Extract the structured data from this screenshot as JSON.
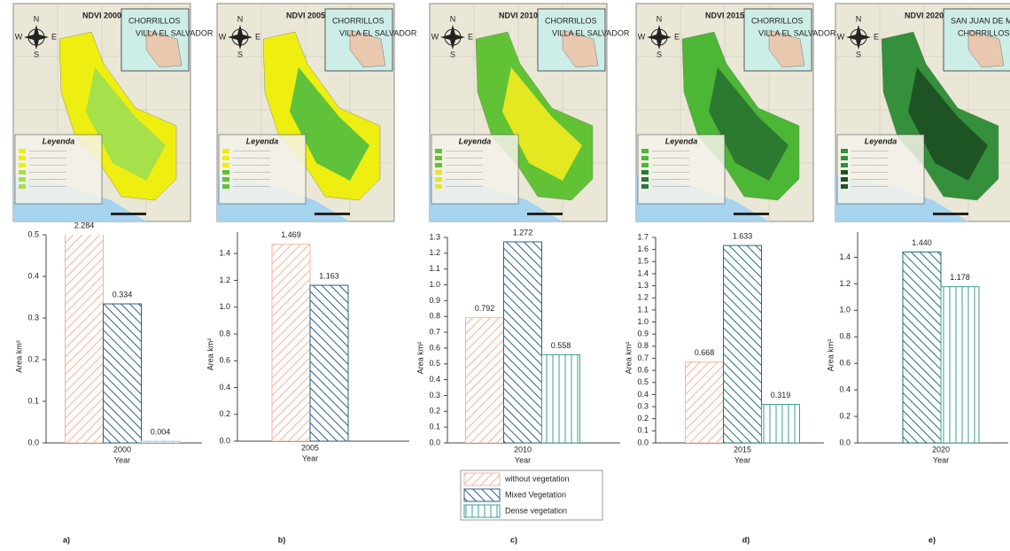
{
  "compass": [
    "N",
    "S",
    "E",
    "W"
  ],
  "maps": [
    {
      "title": "NDVI 2000",
      "places": [
        "CHORRILLOS",
        "VILLA EL SALVADOR"
      ],
      "legend_title": "Leyenda"
    },
    {
      "title": "NDVI 2005",
      "places": [
        "CHORRILLOS",
        "VILLA EL SALVADOR"
      ],
      "legend_title": "Leyenda"
    },
    {
      "title": "NDVI 2010",
      "places": [
        "CHORRILLOS",
        "VILLA EL SALVADOR"
      ],
      "legend_title": "Leyenda"
    },
    {
      "title": "NDVI 2015",
      "places": [
        "CHORRILLOS",
        "VILLA EL SALVADOR"
      ],
      "legend_title": "Leyenda"
    },
    {
      "title": "NDVI 2020",
      "places": [
        "SAN JUAN DE MIRAFLORES",
        "CHORRILLOS"
      ],
      "legend_title": "Leyenda"
    }
  ],
  "chart_data": [
    {
      "type": "bar",
      "panel": "a)",
      "xlabel": "Year",
      "ylabel": "Area km²",
      "categories": [
        "2000"
      ],
      "ylim": [
        0,
        0.5
      ],
      "yticks": [
        {
          "value": 0,
          "label": "0.0"
        },
        0.1,
        0.2,
        0.3,
        0.4,
        0.5
      ],
      "series": [
        {
          "name": "without vegetation",
          "color": "#f2b49c",
          "hatch": "/",
          "values": [
            2.284
          ],
          "value_labels": [
            "2.284"
          ]
        },
        {
          "name": "Mixed Vegetation",
          "color": "#2c5f86",
          "hatch": "\\",
          "values": [
            0.334
          ],
          "value_labels": [
            "0.334"
          ]
        },
        {
          "name": "Dense vegetation",
          "color": "#a9c6e6",
          "hatch": "/",
          "values": [
            0.004
          ],
          "value_labels": [
            "0.004"
          ]
        }
      ]
    },
    {
      "type": "bar",
      "panel": "b)",
      "xlabel": "Year",
      "ylabel": "Area km²",
      "categories": [
        "2005"
      ],
      "ylim": [
        0,
        1.56
      ],
      "yticks": [
        {
          "value": 0,
          "label": "0.0"
        },
        0.2,
        0.4,
        0.6,
        0.8,
        {
          "value": 1,
          "label": "1.0"
        },
        1.2,
        1.4
      ],
      "series": [
        {
          "name": "without vegetation",
          "color": "#f2b49c",
          "hatch": "/",
          "values": [
            1.469
          ],
          "value_labels": [
            "1.469"
          ]
        },
        {
          "name": "Mixed Vegetation",
          "color": "#2c5f86",
          "hatch": "\\",
          "values": [
            1.163
          ],
          "value_labels": [
            "1.163"
          ]
        }
      ]
    },
    {
      "type": "bar",
      "panel": "c)",
      "xlabel": "Year",
      "ylabel": "Area km²",
      "categories": [
        "2010"
      ],
      "ylim": [
        0,
        1.3
      ],
      "yticks": [
        {
          "value": 0,
          "label": "0.0"
        },
        0.1,
        0.2,
        0.3,
        0.4,
        0.5,
        0.6,
        0.7,
        0.8,
        0.9,
        {
          "value": 1,
          "label": "1.0"
        },
        1.1,
        1.2,
        1.3
      ],
      "legend": "bottom",
      "series": [
        {
          "name": "without vegetation",
          "color": "#f2b49c",
          "hatch": "/",
          "values": [
            0.792
          ],
          "value_labels": [
            "0.792"
          ]
        },
        {
          "name": "Mixed Vegetation",
          "color": "#2c5f86",
          "hatch": "\\",
          "values": [
            1.272
          ],
          "value_labels": [
            "1.272"
          ]
        },
        {
          "name": "Dense vegetation",
          "color": "#3e9e94",
          "hatch": "|",
          "values": [
            0.558
          ],
          "value_labels": [
            "0.558"
          ]
        }
      ]
    },
    {
      "type": "bar",
      "panel": "d)",
      "xlabel": "Year",
      "ylabel": "Area km²",
      "categories": [
        "2015"
      ],
      "ylim": [
        0,
        1.7
      ],
      "yticks": [
        {
          "value": 0,
          "label": "0.0"
        },
        0.1,
        0.2,
        0.3,
        0.4,
        0.5,
        0.6,
        0.7,
        0.8,
        0.9,
        {
          "value": 1,
          "label": "1.0"
        },
        1.1,
        1.2,
        1.3,
        1.4,
        1.5,
        1.6,
        1.7
      ],
      "series": [
        {
          "name": "without vegetation",
          "color": "#f2b49c",
          "hatch": "/",
          "values": [
            0.668
          ],
          "value_labels": [
            "0.668"
          ]
        },
        {
          "name": "Mixed Vegetation",
          "color": "#1f6f78",
          "hatch": "\\",
          "values": [
            1.633
          ],
          "value_labels": [
            "1.633"
          ]
        },
        {
          "name": "Dense vegetation",
          "color": "#3e9e94",
          "hatch": "|",
          "values": [
            0.319
          ],
          "value_labels": [
            "0.319"
          ]
        }
      ]
    },
    {
      "type": "bar",
      "panel": "e)",
      "xlabel": "Year",
      "ylabel": "Area km²",
      "categories": [
        "2020"
      ],
      "ylim": [
        0,
        1.59
      ],
      "yticks": [
        {
          "value": 0,
          "label": "0.0"
        },
        0.2,
        0.4,
        0.6,
        0.8,
        {
          "value": 1,
          "label": "1.0"
        },
        1.2,
        1.4
      ],
      "series": [
        {
          "name": "Mixed Vegetation",
          "color": "#1f6f78",
          "hatch": "\\",
          "values": [
            1.44
          ],
          "value_labels": [
            "1.440"
          ]
        },
        {
          "name": "Dense vegetation",
          "color": "#3e9e94",
          "hatch": "|",
          "values": [
            1.178
          ],
          "value_labels": [
            "1.178"
          ]
        }
      ]
    }
  ]
}
